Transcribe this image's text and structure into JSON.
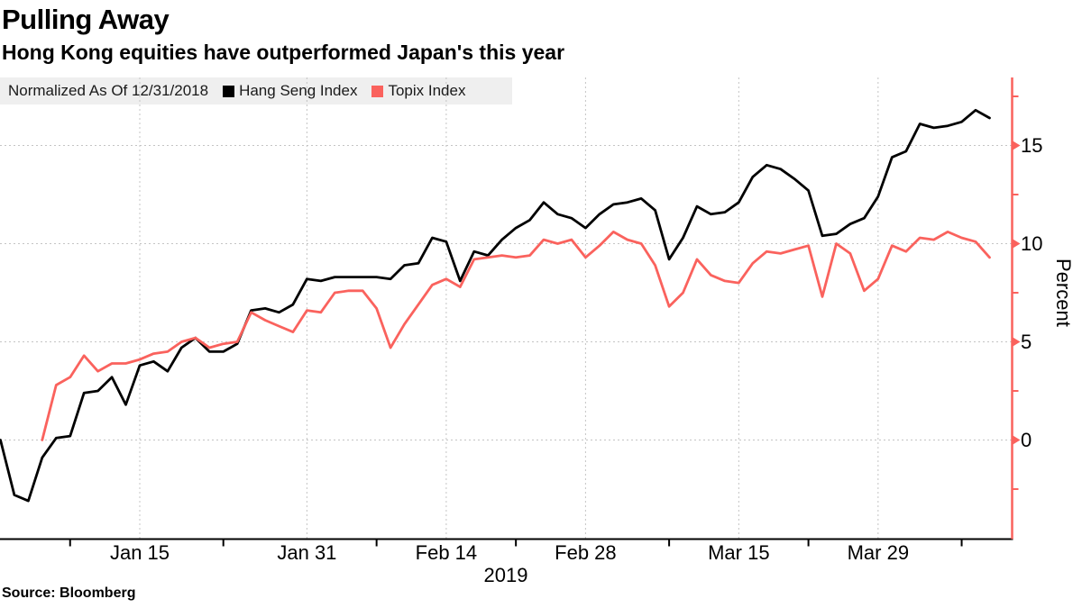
{
  "header": {
    "title": "Pulling Away",
    "subtitle": "Hong Kong equities have outperformed Japan's this year",
    "source": "Source: Bloomberg"
  },
  "legend": {
    "note": "Normalized As Of 12/31/2018",
    "items": [
      {
        "label": "Hang Seng Index",
        "color": "#000000"
      },
      {
        "label": "Topix Index",
        "color": "#fa625d"
      }
    ]
  },
  "colors": {
    "hang_seng": "#000000",
    "topix": "#fa625d",
    "y_axis": "#fa625d",
    "x_axis": "#000000",
    "gridline": "#c4c4c4",
    "legend_background": "#efefef"
  },
  "chart_data": {
    "type": "line",
    "title": "Pulling Away",
    "ylabel": "Percent",
    "year_label": "2019",
    "ylim": [
      -5.1,
      18.5
    ],
    "grid": true,
    "legend_position": "top-left",
    "y_ticks": [
      0,
      5,
      10,
      15
    ],
    "y_minor_ticks": [
      -2.5,
      2.5,
      7.5,
      12.5,
      17.5
    ],
    "x": [
      "12/31",
      "1/2",
      "1/3",
      "1/4",
      "1/7",
      "1/8",
      "1/9",
      "1/10",
      "1/11",
      "1/14",
      "1/15",
      "1/16",
      "1/17",
      "1/18",
      "1/21",
      "1/22",
      "1/23",
      "1/24",
      "1/25",
      "1/28",
      "1/29",
      "1/30",
      "1/31",
      "2/1",
      "2/4",
      "2/5",
      "2/6",
      "2/7",
      "2/8",
      "2/11",
      "2/12",
      "2/13",
      "2/14",
      "2/15",
      "2/18",
      "2/19",
      "2/20",
      "2/21",
      "2/22",
      "2/25",
      "2/26",
      "2/27",
      "2/28",
      "3/1",
      "3/4",
      "3/5",
      "3/6",
      "3/7",
      "3/8",
      "3/11",
      "3/12",
      "3/13",
      "3/14",
      "3/15",
      "3/18",
      "3/19",
      "3/20",
      "3/21",
      "3/22",
      "3/25",
      "3/26",
      "3/27",
      "3/28",
      "3/29",
      "4/1",
      "4/2",
      "4/3",
      "4/4",
      "4/5",
      "4/8",
      "4/9",
      "4/10"
    ],
    "x_tick_labels": [
      "Jan 15",
      "Jan 31",
      "Feb 14",
      "Feb 28",
      "Mar 15",
      "Mar 29"
    ],
    "x_label_indices": [
      10,
      22,
      32,
      42,
      53,
      63
    ],
    "x_minor_tick_indices": [
      5,
      16,
      27,
      37,
      48,
      58,
      69
    ],
    "series": [
      {
        "name": "Hang Seng Index",
        "color": "#000000",
        "values": [
          0.0,
          -2.8,
          -3.1,
          -0.9,
          0.1,
          0.2,
          2.4,
          2.5,
          3.2,
          1.8,
          3.8,
          4.0,
          3.5,
          4.7,
          5.2,
          4.5,
          4.5,
          4.9,
          6.6,
          6.7,
          6.5,
          6.9,
          8.2,
          8.1,
          8.3,
          8.3,
          8.3,
          8.3,
          8.2,
          8.9,
          9.0,
          10.3,
          10.1,
          8.1,
          9.6,
          9.4,
          10.2,
          10.8,
          11.2,
          12.1,
          11.5,
          11.3,
          10.8,
          11.5,
          12.0,
          12.1,
          12.3,
          11.7,
          9.2,
          10.3,
          11.9,
          11.5,
          11.6,
          12.1,
          13.4,
          14.0,
          13.8,
          13.3,
          12.7,
          10.4,
          10.5,
          11.0,
          11.3,
          12.4,
          14.4,
          14.7,
          16.1,
          15.9,
          16.0,
          16.2,
          16.8,
          16.4
        ]
      },
      {
        "name": "Topix Index",
        "color": "#fa625d",
        "values": [
          null,
          null,
          null,
          0.0,
          2.8,
          3.2,
          4.3,
          3.5,
          3.9,
          3.9,
          4.1,
          4.4,
          4.5,
          5.0,
          5.2,
          4.7,
          4.9,
          5.0,
          6.5,
          6.1,
          5.8,
          5.5,
          6.6,
          6.5,
          7.5,
          7.6,
          7.6,
          6.7,
          4.7,
          5.9,
          6.9,
          7.9,
          8.2,
          7.8,
          9.2,
          9.3,
          9.4,
          9.3,
          9.4,
          10.2,
          10.0,
          10.2,
          9.3,
          9.9,
          10.6,
          10.2,
          10.0,
          8.9,
          6.8,
          7.5,
          9.2,
          8.4,
          8.1,
          8.0,
          9.0,
          9.6,
          9.5,
          9.7,
          9.9,
          7.3,
          10.0,
          9.5,
          7.6,
          8.2,
          9.9,
          9.6,
          10.3,
          10.2,
          10.6,
          10.3,
          10.1,
          9.3
        ]
      }
    ]
  }
}
